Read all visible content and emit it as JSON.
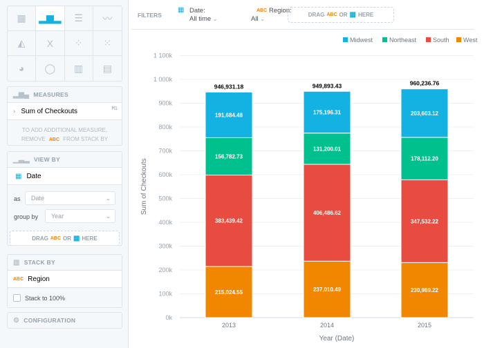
{
  "viz_types": [
    {
      "icon": "table-icon",
      "glyph": "▦"
    },
    {
      "icon": "column-chart-icon",
      "glyph": "▂▆▂",
      "active": true
    },
    {
      "icon": "bar-chart-icon",
      "glyph": "☰"
    },
    {
      "icon": "line-chart-icon",
      "glyph": "〰"
    },
    {
      "icon": "area-chart-icon",
      "glyph": "◭"
    },
    {
      "icon": "headline-icon",
      "glyph": "X"
    },
    {
      "icon": "scatter-plot-icon",
      "glyph": "⁘"
    },
    {
      "icon": "bubble-chart-icon",
      "glyph": "⁙"
    },
    {
      "icon": "pie-chart-icon",
      "glyph": "◕"
    },
    {
      "icon": "donut-chart-icon",
      "glyph": "◯"
    },
    {
      "icon": "treemap-icon",
      "glyph": "▥"
    },
    {
      "icon": "heatmap-icon",
      "glyph": "▤"
    }
  ],
  "measures": {
    "title": "MEASURES",
    "item": "Sum of Checkouts",
    "item_tag": "M1",
    "note_1": "TO ADD ADDITIONAL MEASURE,",
    "note_2a": "REMOVE",
    "note_abc": "ABC",
    "note_2b": "FROM STACK BY"
  },
  "view_by": {
    "title": "VIEW BY",
    "item": "Date",
    "as_label": "as",
    "as_value": "Date",
    "group_label": "group by",
    "group_value": "Year",
    "drag": "DRAG",
    "abc": "ABC",
    "or": "OR",
    "here": "HERE"
  },
  "stack_by": {
    "title": "STACK BY",
    "abc": "ABC",
    "item": "Region",
    "checkbox": "Stack to 100%"
  },
  "configuration": {
    "title": "CONFIGURATION"
  },
  "filters": {
    "label": "FILTERS",
    "date_label": "Date:",
    "date_value": "All time",
    "region_abc": "ABC",
    "region_label": "Region:",
    "region_value": "All",
    "drag": "DRAG",
    "abc": "ABC",
    "or": "OR",
    "here": "HERE"
  },
  "chart_data": {
    "type": "bar",
    "stacked": true,
    "categories": [
      "2013",
      "2014",
      "2015"
    ],
    "series": [
      {
        "name": "West",
        "color": "#f18600",
        "values": [
          215024.55,
          237010.49,
          230989.22
        ],
        "labels": [
          "215,024.55",
          "237,010.49",
          "230,989.22"
        ]
      },
      {
        "name": "South",
        "color": "#e84c40",
        "values": [
          383439.42,
          406486.62,
          347532.22
        ],
        "labels": [
          "383,439.42",
          "406,486.62",
          "347,532.22"
        ]
      },
      {
        "name": "Northeast",
        "color": "#00c18d",
        "values": [
          156782.73,
          131200.01,
          178112.2
        ],
        "labels": [
          "156,782.73",
          "131,200.01",
          "178,112.20"
        ]
      },
      {
        "name": "Midwest",
        "color": "#14b2e2",
        "values": [
          191684.48,
          175196.31,
          203603.12
        ],
        "labels": [
          "191,684.48",
          "175,196.31",
          "203,603.12"
        ]
      }
    ],
    "totals": [
      "946,931.18",
      "949,893.43",
      "960,236.76"
    ],
    "legend": [
      "Midwest",
      "Northeast",
      "South",
      "West"
    ],
    "legend_placement": "top-right",
    "xlabel": "Year (Date)",
    "ylabel": "Sum of Checkouts",
    "ylim": [
      0,
      1100000
    ],
    "yticks": [
      {
        "v": 0,
        "l": "0k"
      },
      {
        "v": 100000,
        "l": "100k"
      },
      {
        "v": 200000,
        "l": "200k"
      },
      {
        "v": 300000,
        "l": "300k"
      },
      {
        "v": 400000,
        "l": "400k"
      },
      {
        "v": 500000,
        "l": "500k"
      },
      {
        "v": 600000,
        "l": "600k"
      },
      {
        "v": 700000,
        "l": "700k"
      },
      {
        "v": 800000,
        "l": "800k"
      },
      {
        "v": 900000,
        "l": "900k"
      },
      {
        "v": 1000000,
        "l": "1 000k"
      },
      {
        "v": 1100000,
        "l": "1 100k"
      }
    ],
    "grid": true
  }
}
